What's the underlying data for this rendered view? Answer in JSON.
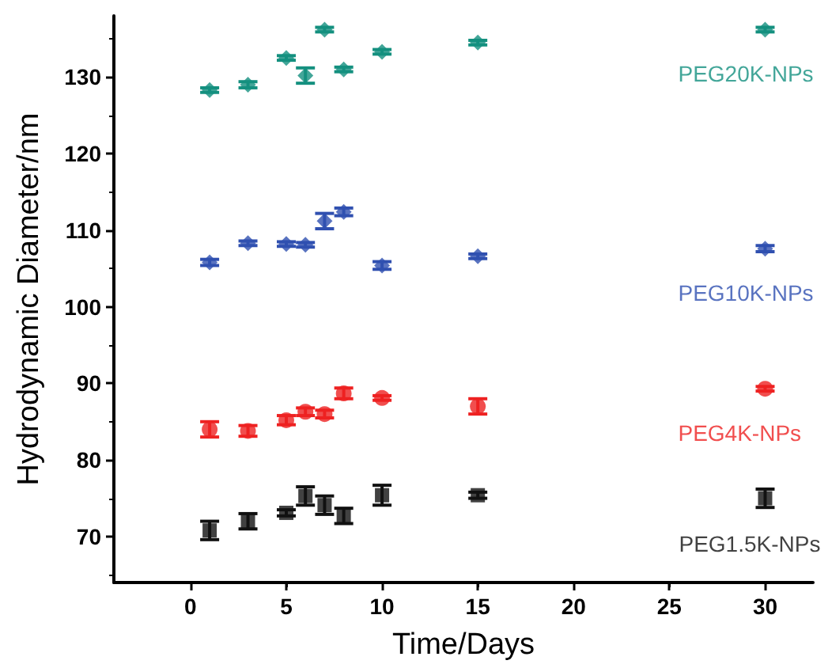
{
  "chart_data": {
    "type": "scatter",
    "xlabel": "Time/Days",
    "ylabel": "Hydrodynamic Diameter/nm",
    "x": [
      1,
      3,
      5,
      6,
      7,
      8,
      10,
      15,
      30
    ],
    "xlim": [
      -4,
      32.5
    ],
    "xticks": [
      0,
      5,
      10,
      15,
      20,
      25,
      30
    ],
    "ylim": [
      64,
      138
    ],
    "yticks": [
      70,
      80,
      90,
      100,
      110,
      120,
      130
    ],
    "grid": false,
    "legend": false,
    "series": [
      {
        "name": "PEG20K-NPs",
        "color": "#14907f",
        "marker": "diamond",
        "values": [
          128.3,
          129,
          132.5,
          130.2,
          136.2,
          131,
          133.3,
          134.5,
          136.2
        ],
        "errors": [
          0.3,
          0.4,
          0.3,
          1,
          0.3,
          0.3,
          0.3,
          0.3,
          0.3
        ]
      },
      {
        "name": "PEG10K-NPs",
        "color": "#3050b0",
        "marker": "diamond",
        "values": [
          105.8,
          108.3,
          108.2,
          108.1,
          111.2,
          112.4,
          105.4,
          106.6,
          107.6
        ],
        "errors": [
          0.4,
          0.3,
          0.3,
          0.3,
          1,
          0.5,
          0.5,
          0.3,
          0.4
        ]
      },
      {
        "name": "PEG4K-NPs",
        "color": "#ee2222",
        "marker": "circle",
        "values": [
          84,
          83.8,
          85.2,
          86.3,
          86,
          88.7,
          88.1,
          87,
          89.3
        ],
        "errors": [
          1,
          0.7,
          0.6,
          0.5,
          0.5,
          0.7,
          0.3,
          1,
          0.3
        ]
      },
      {
        "name": "PEG1.5K-NPs",
        "color": "#111111",
        "marker": "square",
        "values": [
          70.8,
          72,
          73.1,
          75.3,
          74.1,
          72.7,
          75.4,
          75.4,
          75
        ],
        "errors": [
          1.2,
          1,
          0.4,
          1.2,
          1.2,
          1,
          1.3,
          0.4,
          1.2
        ]
      }
    ]
  }
}
